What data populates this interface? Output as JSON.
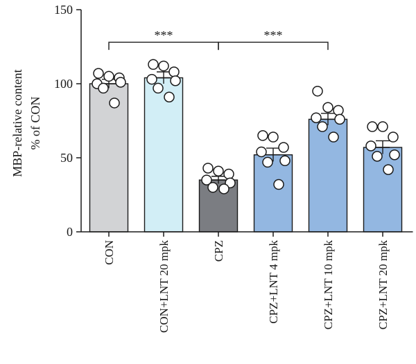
{
  "chart_data": {
    "type": "bar",
    "ylabel_line1": "MBP-relative content",
    "ylabel_line2": "% of CON",
    "ylim": [
      0,
      150
    ],
    "yticks": [
      0,
      50,
      100,
      150
    ],
    "error_bars": "SEM",
    "categories": [
      "CON",
      "CON+LNT 20 mpk",
      "CPZ",
      "CPZ+LNT 4 mpk",
      "CPZ+LNT 10 mpk",
      "CPZ+LNT 20 mpk"
    ],
    "values": [
      100,
      104,
      35,
      52,
      76,
      57
    ],
    "errors": [
      3,
      4,
      2.5,
      4.5,
      4,
      4.5
    ],
    "colors": [
      "#d2d3d5",
      "#d2eef6",
      "#7b7d82",
      "#93b7e1",
      "#93b7e1",
      "#93b7e1"
    ],
    "points": [
      [
        107,
        105,
        104,
        100,
        101,
        97,
        87
      ],
      [
        113,
        112,
        108,
        103,
        102,
        97,
        91
      ],
      [
        43,
        41,
        39,
        35,
        33,
        30,
        29
      ],
      [
        65,
        64,
        57,
        54,
        48,
        47,
        32
      ],
      [
        95,
        84,
        82,
        77,
        76,
        71,
        64
      ],
      [
        71,
        71,
        64,
        58,
        52,
        51,
        42
      ]
    ],
    "significance": [
      {
        "from": 0,
        "to": 2,
        "label": "***"
      },
      {
        "from": 2,
        "to": 4,
        "label": "***"
      }
    ]
  }
}
